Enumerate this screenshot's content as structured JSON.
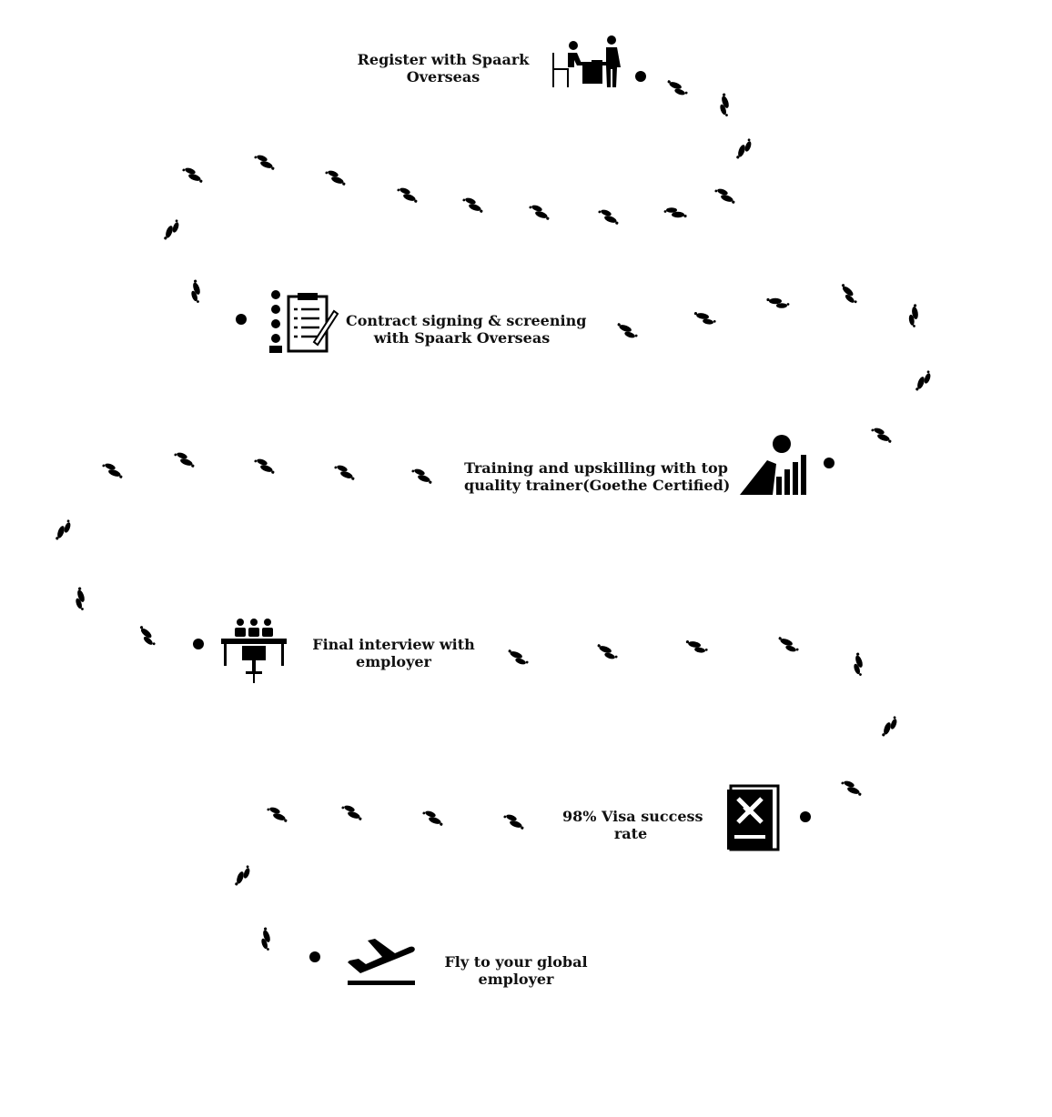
{
  "steps": [
    {
      "id": "register",
      "label_lines": [
        "Register with Spaark",
        "Overseas"
      ],
      "icon": "person-at-desk-icon"
    },
    {
      "id": "contract",
      "label_lines": [
        "Contract signing & screening",
        "with Spaark Overseas"
      ],
      "icon": "checklist-clipboard-icon"
    },
    {
      "id": "training",
      "label_lines": [
        "Training and upskilling with top",
        "quality trainer(Goethe Certified)"
      ],
      "icon": "person-presenting-chart-icon"
    },
    {
      "id": "interview",
      "label_lines": [
        "Final interview with",
        "employer"
      ],
      "icon": "interview-panel-icon"
    },
    {
      "id": "visa",
      "label_lines": [
        "98% Visa success",
        "rate"
      ],
      "icon": "passport-icon"
    },
    {
      "id": "fly",
      "label_lines": [
        "Fly to your global",
        "employer"
      ],
      "icon": "plane-departure-icon"
    }
  ],
  "path_icon": "footprints-icon",
  "colors": {
    "ink": "#000000",
    "background": "#ffffff"
  }
}
